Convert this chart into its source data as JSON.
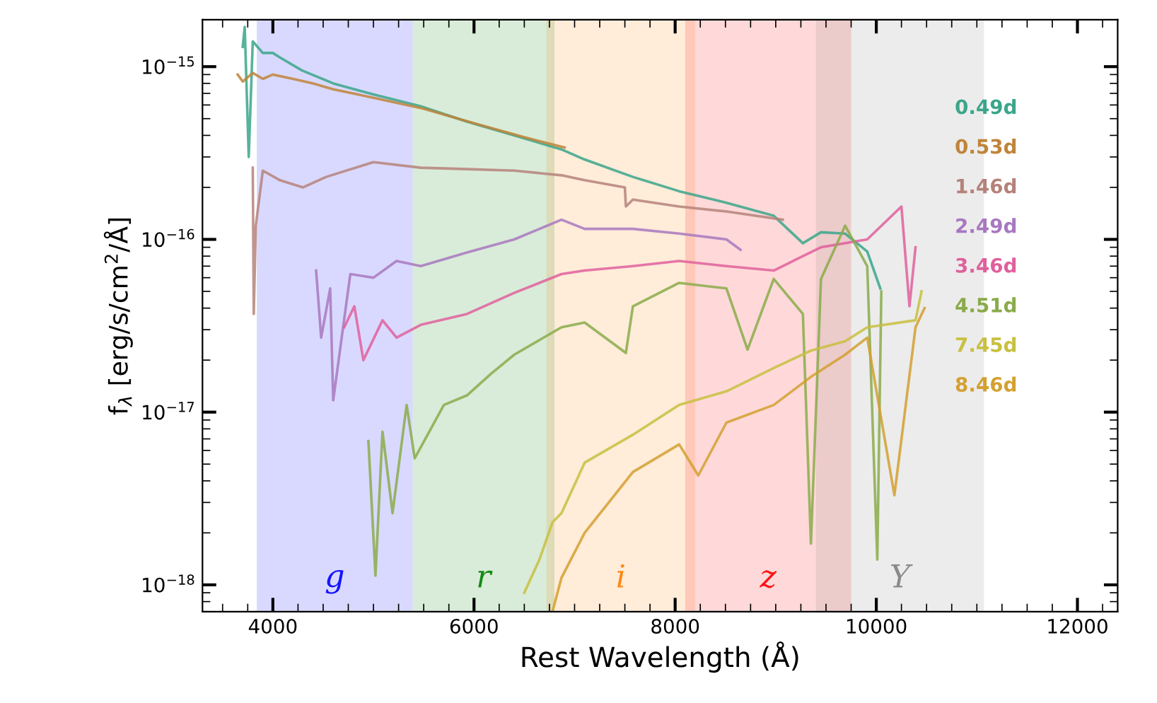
{
  "chart_data": {
    "type": "line",
    "xlabel": "Rest Wavelength (Å)",
    "ylabel": "f$_{λ}$ [erg/s/cm$^{2}$/Å]",
    "log": "y",
    "xlim": [
      3300,
      12400
    ],
    "xticks": [
      4000,
      6000,
      8000,
      10000,
      12000
    ],
    "ylim": [
      7e-19,
      1.87e-15
    ],
    "yticks": [
      {
        "value": 1e-18,
        "label": "10$^{−18}$"
      },
      {
        "value": 1e-17,
        "label": "10$^{−17}$"
      },
      {
        "value": 1e-16,
        "label": "10$^{−16}$"
      },
      {
        "value": 1e-15,
        "label": "10$^{−15}$"
      }
    ],
    "grid": false,
    "legend": false,
    "line_style": "solid",
    "marker": "none",
    "bands": [
      {
        "axis": "x",
        "from": 3840,
        "to": 5390,
        "label": "g",
        "color": "#0000ff"
      },
      {
        "axis": "x",
        "from": 5390,
        "to": 6800,
        "label": "r",
        "color": "#008000"
      },
      {
        "axis": "x",
        "from": 6720,
        "to": 8200,
        "label": "i",
        "color": "#ff8000"
      },
      {
        "axis": "x",
        "from": 8100,
        "to": 9750,
        "label": "z",
        "color": "#ff0000"
      },
      {
        "axis": "x",
        "from": 9400,
        "to": 11070,
        "label": "Y",
        "color": "#808080"
      }
    ],
    "series": [
      {
        "name": "0.49d",
        "color": "#3aa68a",
        "x": [
          3700,
          3720,
          3760,
          3800,
          3900,
          4000,
          4070,
          4290,
          4600,
          5000,
          5470,
          5930,
          6400,
          6880,
          7100,
          7580,
          8040,
          8510,
          8980,
          9270,
          9450,
          9690,
          9910,
          10040
        ],
        "values": [
          1.3e-15,
          1.7e-15,
          3e-16,
          1.4e-15,
          1.2e-15,
          1.2e-15,
          1.13e-15,
          9.5e-16,
          8e-16,
          6.9e-16,
          5.9e-16,
          4.8e-16,
          4e-16,
          3.3e-16,
          2.9e-16,
          2.3e-16,
          1.9e-16,
          1.63e-16,
          1.37e-16,
          9.5e-17,
          1.1e-16,
          1.08e-16,
          8.5e-17,
          5.2e-17
        ]
      },
      {
        "name": "0.53d",
        "color": "#c0843a",
        "x": [
          3650,
          3700,
          3800,
          3900,
          4000,
          4200,
          4400,
          4600,
          5000,
          5500,
          6000,
          6500,
          6900
        ],
        "values": [
          9e-16,
          8.2e-16,
          9.2e-16,
          8.5e-16,
          9e-16,
          8.5e-16,
          8e-16,
          7.4e-16,
          6.6e-16,
          5.7e-16,
          4.7e-16,
          3.9e-16,
          3.4e-16
        ]
      },
      {
        "name": "1.46d",
        "color": "#b5827a",
        "x": [
          3800,
          3810,
          3830,
          3900,
          4070,
          4300,
          4530,
          5000,
          5470,
          5930,
          6400,
          6870,
          7100,
          7500,
          7510,
          7580,
          8040,
          8510,
          9070
        ],
        "values": [
          2.6e-16,
          3.7e-17,
          1.2e-16,
          2.5e-16,
          2.2e-16,
          2e-16,
          2.3e-16,
          2.8e-16,
          2.6e-16,
          2.55e-16,
          2.5e-16,
          2.35e-16,
          2.2e-16,
          2e-16,
          1.55e-16,
          1.7e-16,
          1.55e-16,
          1.45e-16,
          1.3e-16
        ]
      },
      {
        "name": "2.49d",
        "color": "#a878c0",
        "x": [
          4430,
          4480,
          4570,
          4600,
          4770,
          5000,
          5230,
          5470,
          5930,
          6400,
          6870,
          7100,
          7580,
          8040,
          8510,
          8650
        ],
        "values": [
          6.6e-17,
          2.7e-17,
          5.2e-17,
          1.17e-17,
          6.3e-17,
          6e-17,
          7.5e-17,
          7e-17,
          8.4e-17,
          1e-16,
          1.3e-16,
          1.15e-16,
          1.15e-16,
          1.08e-16,
          1e-16,
          8.7e-17
        ]
      },
      {
        "name": "3.46d",
        "color": "#e0609c",
        "x": [
          4710,
          4810,
          4900,
          5090,
          5230,
          5470,
          5930,
          6400,
          6870,
          7100,
          7580,
          8040,
          8510,
          8980,
          9270,
          9450,
          9910,
          10250,
          10330,
          10390
        ],
        "values": [
          3.1e-17,
          4.1e-17,
          2e-17,
          3.4e-17,
          2.7e-17,
          3.2e-17,
          3.7e-17,
          4.9e-17,
          6.3e-17,
          6.6e-17,
          7e-17,
          7.5e-17,
          7e-17,
          6.6e-17,
          8e-17,
          9e-17,
          1e-16,
          1.55e-16,
          4.1e-17,
          9e-17
        ]
      },
      {
        "name": "4.51d",
        "color": "#8aab4a",
        "x": [
          4950,
          5020,
          5090,
          5190,
          5330,
          5410,
          5700,
          5930,
          6170,
          6400,
          6870,
          7100,
          7510,
          7580,
          8040,
          8510,
          8720,
          8980,
          9270,
          9350,
          9450,
          9690,
          9910,
          10010,
          10050
        ],
        "values": [
          6.8e-18,
          1.13e-18,
          7.7e-18,
          2.6e-18,
          1.1e-17,
          5.4e-18,
          1.1e-17,
          1.25e-17,
          1.67e-17,
          2.15e-17,
          3.1e-17,
          3.3e-17,
          2.2e-17,
          4.1e-17,
          5.6e-17,
          5.2e-17,
          2.3e-17,
          5.9e-17,
          3.7e-17,
          1.73e-18,
          5.9e-17,
          1.2e-16,
          7e-17,
          1.4e-18,
          5e-17
        ]
      },
      {
        "name": "7.45d",
        "color": "#c8c040",
        "x": [
          6500,
          6650,
          6780,
          6870,
          7100,
          7580,
          8040,
          8510,
          8980,
          9350,
          9690,
          9910,
          10390,
          10450
        ],
        "values": [
          9e-19,
          1.4e-18,
          2.3e-18,
          2.6e-18,
          5.1e-18,
          7.4e-18,
          1.1e-17,
          1.32e-17,
          1.8e-17,
          2.27e-17,
          2.57e-17,
          3.1e-17,
          3.4e-17,
          5e-17
        ]
      },
      {
        "name": "8.46d",
        "color": "#d4a030",
        "x": [
          6780,
          6870,
          7100,
          7580,
          8040,
          8230,
          8510,
          8980,
          9350,
          9690,
          9910,
          10180,
          10390,
          10480
        ],
        "values": [
          7e-19,
          1.1e-18,
          2e-18,
          4.5e-18,
          6.5e-18,
          4.3e-18,
          8.7e-18,
          1.1e-17,
          1.6e-17,
          2.15e-17,
          2.7e-17,
          3.3e-18,
          3.1e-17,
          4e-17
        ]
      }
    ]
  }
}
